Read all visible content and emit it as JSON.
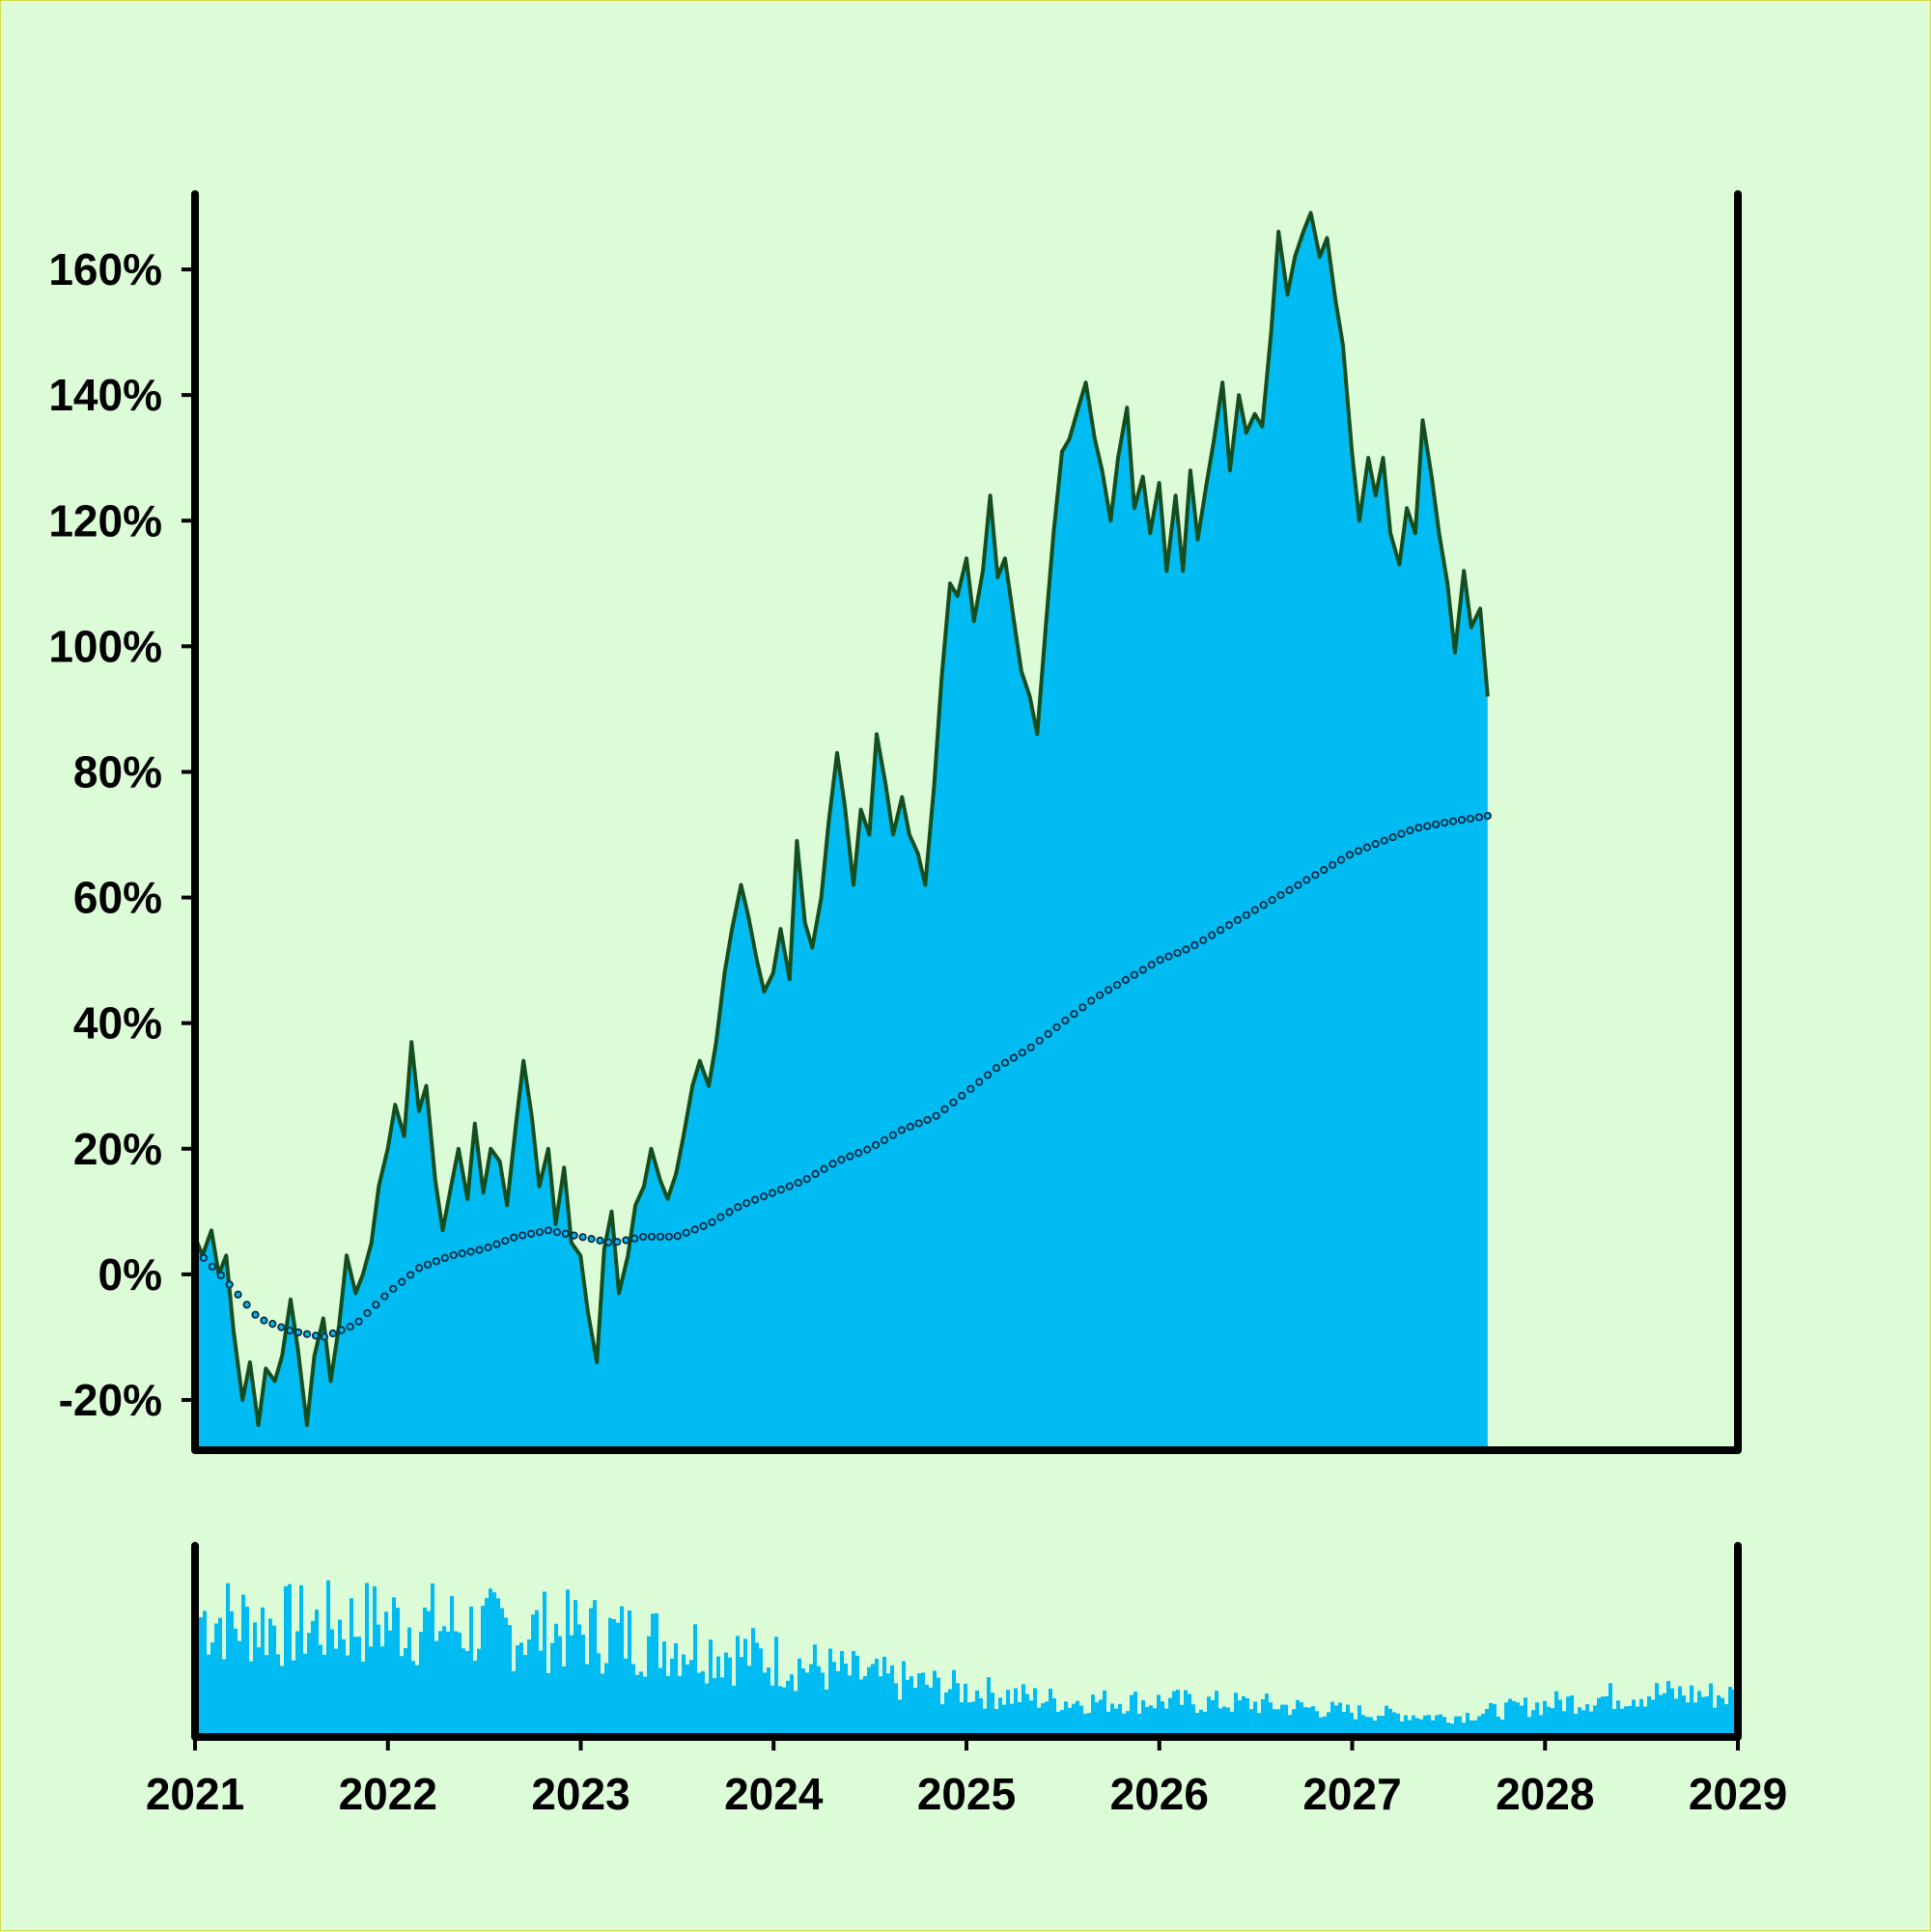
{
  "chart_data": {
    "type": "area",
    "title": "",
    "xlabel": "",
    "ylabel": "",
    "x_range": [
      "2021-01-01",
      "2029-01-01"
    ],
    "ylim": [
      -28,
      172
    ],
    "y_ticks": [
      -20,
      0,
      20,
      40,
      60,
      80,
      100,
      120,
      140,
      160
    ],
    "y_tick_labels": [
      "-20%",
      "0%",
      "20%",
      "40%",
      "60%",
      "80%",
      "100%",
      "120%",
      "140%",
      "160%"
    ],
    "x_tick_labels": [
      "2021",
      "2022",
      "2023",
      "2024",
      "2025",
      "2026",
      "2027",
      "2028",
      "2029"
    ],
    "grid": false,
    "colors": {
      "background": "#dcfcd8",
      "area_fill": "#00bcf2",
      "line": "#144d1e",
      "moving_average": "#0b2a44",
      "volume": "#00bcf2",
      "axis": "#000000",
      "border": "#d6d84a"
    },
    "series": [
      {
        "type": "area",
        "values_unit": "percent",
        "points": [
          [
            "2021-01-01",
            6
          ],
          [
            "2021-01-15",
            3
          ],
          [
            "2021-02-01",
            7
          ],
          [
            "2021-02-15",
            0
          ],
          [
            "2021-03-01",
            3
          ],
          [
            "2021-03-15",
            -9
          ],
          [
            "2021-04-01",
            -20
          ],
          [
            "2021-04-15",
            -14
          ],
          [
            "2021-05-01",
            -24
          ],
          [
            "2021-05-15",
            -15
          ],
          [
            "2021-06-01",
            -17
          ],
          [
            "2021-06-15",
            -13
          ],
          [
            "2021-07-01",
            -4
          ],
          [
            "2021-07-15",
            -12
          ],
          [
            "2021-08-01",
            -24
          ],
          [
            "2021-08-15",
            -13
          ],
          [
            "2021-09-01",
            -7
          ],
          [
            "2021-09-15",
            -17
          ],
          [
            "2021-10-01",
            -8
          ],
          [
            "2021-10-15",
            3
          ],
          [
            "2021-11-01",
            -3
          ],
          [
            "2021-11-15",
            0
          ],
          [
            "2021-12-01",
            5
          ],
          [
            "2021-12-15",
            14
          ],
          [
            "2022-01-01",
            20
          ],
          [
            "2022-01-15",
            27
          ],
          [
            "2022-02-01",
            22
          ],
          [
            "2022-02-15",
            37
          ],
          [
            "2022-03-01",
            26
          ],
          [
            "2022-03-15",
            30
          ],
          [
            "2022-04-01",
            15
          ],
          [
            "2022-04-15",
            7
          ],
          [
            "2022-05-01",
            14
          ],
          [
            "2022-05-15",
            20
          ],
          [
            "2022-06-01",
            12
          ],
          [
            "2022-06-15",
            24
          ],
          [
            "2022-07-01",
            13
          ],
          [
            "2022-07-15",
            20
          ],
          [
            "2022-08-01",
            18
          ],
          [
            "2022-08-15",
            11
          ],
          [
            "2022-09-01",
            24
          ],
          [
            "2022-09-15",
            34
          ],
          [
            "2022-10-01",
            25
          ],
          [
            "2022-10-15",
            14
          ],
          [
            "2022-11-01",
            20
          ],
          [
            "2022-11-15",
            8
          ],
          [
            "2022-12-01",
            17
          ],
          [
            "2022-12-15",
            5
          ],
          [
            "2023-01-01",
            3
          ],
          [
            "2023-01-15",
            -6
          ],
          [
            "2023-02-01",
            -14
          ],
          [
            "2023-02-15",
            4
          ],
          [
            "2023-03-01",
            10
          ],
          [
            "2023-03-15",
            -3
          ],
          [
            "2023-04-01",
            3
          ],
          [
            "2023-04-15",
            11
          ],
          [
            "2023-05-01",
            14
          ],
          [
            "2023-05-15",
            20
          ],
          [
            "2023-06-01",
            15
          ],
          [
            "2023-06-15",
            12
          ],
          [
            "2023-07-01",
            16
          ],
          [
            "2023-07-15",
            22
          ],
          [
            "2023-08-01",
            30
          ],
          [
            "2023-08-15",
            34
          ],
          [
            "2023-09-01",
            30
          ],
          [
            "2023-09-15",
            37
          ],
          [
            "2023-10-01",
            48
          ],
          [
            "2023-10-15",
            55
          ],
          [
            "2023-11-01",
            62
          ],
          [
            "2023-11-15",
            57
          ],
          [
            "2023-12-01",
            50
          ],
          [
            "2023-12-15",
            45
          ],
          [
            "2024-01-01",
            48
          ],
          [
            "2024-01-15",
            55
          ],
          [
            "2024-02-01",
            47
          ],
          [
            "2024-02-15",
            69
          ],
          [
            "2024-03-01",
            56
          ],
          [
            "2024-03-15",
            52
          ],
          [
            "2024-04-01",
            60
          ],
          [
            "2024-04-15",
            72
          ],
          [
            "2024-05-01",
            83
          ],
          [
            "2024-05-15",
            75
          ],
          [
            "2024-06-01",
            62
          ],
          [
            "2024-06-15",
            74
          ],
          [
            "2024-07-01",
            70
          ],
          [
            "2024-07-15",
            86
          ],
          [
            "2024-08-01",
            78
          ],
          [
            "2024-08-15",
            70
          ],
          [
            "2024-09-01",
            76
          ],
          [
            "2024-09-15",
            70
          ],
          [
            "2024-10-01",
            67
          ],
          [
            "2024-10-15",
            62
          ],
          [
            "2024-11-01",
            78
          ],
          [
            "2024-11-15",
            95
          ],
          [
            "2024-12-01",
            110
          ],
          [
            "2024-12-15",
            108
          ],
          [
            "2025-01-01",
            114
          ],
          [
            "2025-01-15",
            104
          ],
          [
            "2025-02-01",
            112
          ],
          [
            "2025-02-15",
            124
          ],
          [
            "2025-03-01",
            111
          ],
          [
            "2025-03-15",
            114
          ],
          [
            "2025-04-01",
            104
          ],
          [
            "2025-04-15",
            96
          ],
          [
            "2025-05-01",
            92
          ],
          [
            "2025-05-15",
            86
          ],
          [
            "2025-06-01",
            104
          ],
          [
            "2025-06-15",
            118
          ],
          [
            "2025-07-01",
            131
          ],
          [
            "2025-07-15",
            133
          ],
          [
            "2025-08-01",
            138
          ],
          [
            "2025-08-15",
            142
          ],
          [
            "2025-09-01",
            133
          ],
          [
            "2025-09-15",
            128
          ],
          [
            "2025-10-01",
            120
          ],
          [
            "2025-10-15",
            130
          ],
          [
            "2025-11-01",
            138
          ],
          [
            "2025-11-15",
            122
          ],
          [
            "2025-12-01",
            127
          ],
          [
            "2025-12-15",
            118
          ],
          [
            "2026-01-01",
            126
          ],
          [
            "2026-01-15",
            112
          ],
          [
            "2026-02-01",
            124
          ],
          [
            "2026-02-15",
            112
          ],
          [
            "2026-03-01",
            128
          ],
          [
            "2026-03-15",
            117
          ],
          [
            "2026-04-01",
            126
          ],
          [
            "2026-04-15",
            133
          ],
          [
            "2026-05-01",
            142
          ],
          [
            "2026-05-15",
            128
          ],
          [
            "2026-06-01",
            140
          ],
          [
            "2026-06-15",
            134
          ],
          [
            "2026-07-01",
            137
          ],
          [
            "2026-07-15",
            135
          ],
          [
            "2026-08-01",
            150
          ],
          [
            "2026-08-15",
            166
          ],
          [
            "2026-09-01",
            156
          ],
          [
            "2026-09-15",
            162
          ],
          [
            "2026-10-01",
            166
          ],
          [
            "2026-10-15",
            169
          ],
          [
            "2026-11-01",
            162
          ],
          [
            "2026-11-15",
            165
          ],
          [
            "2026-12-01",
            155
          ],
          [
            "2026-12-15",
            148
          ],
          [
            "2027-01-01",
            131
          ],
          [
            "2027-01-15",
            120
          ],
          [
            "2027-02-01",
            130
          ],
          [
            "2027-02-15",
            124
          ],
          [
            "2027-03-01",
            130
          ],
          [
            "2027-03-15",
            118
          ],
          [
            "2027-04-01",
            113
          ],
          [
            "2027-04-15",
            122
          ],
          [
            "2027-05-01",
            118
          ],
          [
            "2027-05-15",
            136
          ],
          [
            "2027-06-01",
            127
          ],
          [
            "2027-06-15",
            118
          ],
          [
            "2027-07-01",
            110
          ],
          [
            "2027-07-15",
            99
          ],
          [
            "2027-08-01",
            112
          ],
          [
            "2027-08-15",
            103
          ],
          [
            "2027-09-01",
            106
          ],
          [
            "2027-09-15",
            92
          ]
        ]
      },
      {
        "type": "moving-average-dots",
        "values_unit": "percent",
        "points": [
          [
            "2021-01-01",
            4
          ],
          [
            "2021-03-01",
            -1
          ],
          [
            "2021-05-01",
            -7
          ],
          [
            "2021-07-01",
            -9
          ],
          [
            "2021-09-01",
            -10
          ],
          [
            "2021-11-01",
            -8
          ],
          [
            "2022-01-01",
            -3
          ],
          [
            "2022-03-01",
            1
          ],
          [
            "2022-05-01",
            3
          ],
          [
            "2022-07-01",
            4
          ],
          [
            "2022-09-01",
            6
          ],
          [
            "2022-11-01",
            7
          ],
          [
            "2023-01-01",
            6
          ],
          [
            "2023-03-01",
            5
          ],
          [
            "2023-05-01",
            6
          ],
          [
            "2023-07-01",
            6
          ],
          [
            "2023-09-01",
            8
          ],
          [
            "2023-11-01",
            11
          ],
          [
            "2024-01-01",
            13
          ],
          [
            "2024-03-01",
            15
          ],
          [
            "2024-05-01",
            18
          ],
          [
            "2024-07-01",
            20
          ],
          [
            "2024-09-01",
            23
          ],
          [
            "2024-11-01",
            25
          ],
          [
            "2025-01-01",
            29
          ],
          [
            "2025-03-01",
            33
          ],
          [
            "2025-05-01",
            36
          ],
          [
            "2025-07-01",
            40
          ],
          [
            "2025-09-01",
            44
          ],
          [
            "2025-11-01",
            47
          ],
          [
            "2026-01-01",
            50
          ],
          [
            "2026-03-01",
            52
          ],
          [
            "2026-05-01",
            55
          ],
          [
            "2026-07-01",
            58
          ],
          [
            "2026-09-01",
            61
          ],
          [
            "2026-11-01",
            64
          ],
          [
            "2027-01-01",
            67
          ],
          [
            "2027-03-01",
            69
          ],
          [
            "2027-05-01",
            71
          ],
          [
            "2027-07-01",
            72
          ],
          [
            "2027-09-15",
            73
          ]
        ]
      }
    ],
    "volume": {
      "type": "bar",
      "ylim": [
        0,
        100
      ],
      "segments": [
        [
          "2021-01-01",
          88
        ],
        [
          "2021-07-01",
          80
        ],
        [
          "2022-01-01",
          84
        ],
        [
          "2022-07-01",
          78
        ],
        [
          "2023-01-01",
          76
        ],
        [
          "2023-07-01",
          68
        ],
        [
          "2024-01-01",
          55
        ],
        [
          "2024-07-01",
          42
        ],
        [
          "2025-01-01",
          32
        ],
        [
          "2025-07-01",
          24
        ],
        [
          "2026-01-01",
          24
        ],
        [
          "2026-07-01",
          22
        ],
        [
          "2027-01-01",
          16
        ],
        [
          "2027-07-01",
          12
        ],
        [
          "2028-01-01",
          22
        ],
        [
          "2028-07-01",
          30
        ],
        [
          "2029-01-01",
          28
        ]
      ]
    }
  }
}
